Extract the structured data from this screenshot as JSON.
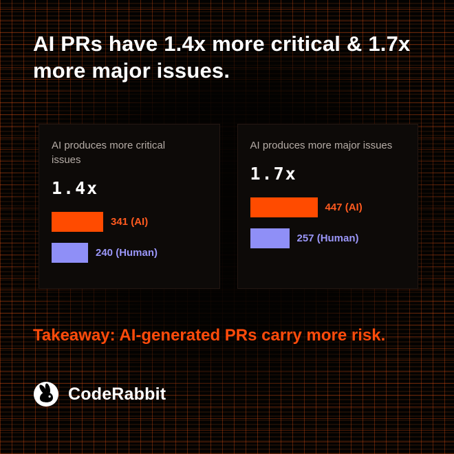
{
  "page": {
    "title": "AI PRs have 1.4x more critical & 1.7x more major issues."
  },
  "cards": [
    {
      "caption": "AI produces more critical issues",
      "multiplier": "1.4x",
      "bars": [
        {
          "label": "341 (AI)",
          "value": 341
        },
        {
          "label": "240 (Human)",
          "value": 240
        }
      ]
    },
    {
      "caption": "AI produces more major issues",
      "multiplier": "1.7x",
      "bars": [
        {
          "label": "447 (AI)",
          "value": 447
        },
        {
          "label": "257 (Human)",
          "value": 257
        }
      ]
    }
  ],
  "takeaway": "Takeaway: AI-generated PRs carry more risk.",
  "brand": {
    "name": "CodeRabbit",
    "logo_icon": "rabbit-icon"
  },
  "colors": {
    "ai_bar": "#ff4b00",
    "human_bar": "#8f8ff7",
    "accent": "#ff4b0b",
    "background": "#030201",
    "card_background": "#0d0a08",
    "caption_text": "#b5aca6"
  },
  "chart_data": [
    {
      "type": "bar",
      "orientation": "horizontal",
      "title": "AI produces more critical issues",
      "categories": [
        "AI",
        "Human"
      ],
      "values": [
        341,
        240
      ],
      "data_labels": [
        "341 (AI)",
        "240 (Human)"
      ],
      "annotation": "1.4x",
      "colors": [
        "#ff4b00",
        "#8f8ff7"
      ],
      "grid": false,
      "legend": "none"
    },
    {
      "type": "bar",
      "orientation": "horizontal",
      "title": "AI produces more major issues",
      "categories": [
        "AI",
        "Human"
      ],
      "values": [
        447,
        257
      ],
      "data_labels": [
        "447 (AI)",
        "257 (Human)"
      ],
      "annotation": "1.7x",
      "colors": [
        "#ff4b00",
        "#8f8ff7"
      ],
      "grid": false,
      "legend": "none"
    }
  ]
}
